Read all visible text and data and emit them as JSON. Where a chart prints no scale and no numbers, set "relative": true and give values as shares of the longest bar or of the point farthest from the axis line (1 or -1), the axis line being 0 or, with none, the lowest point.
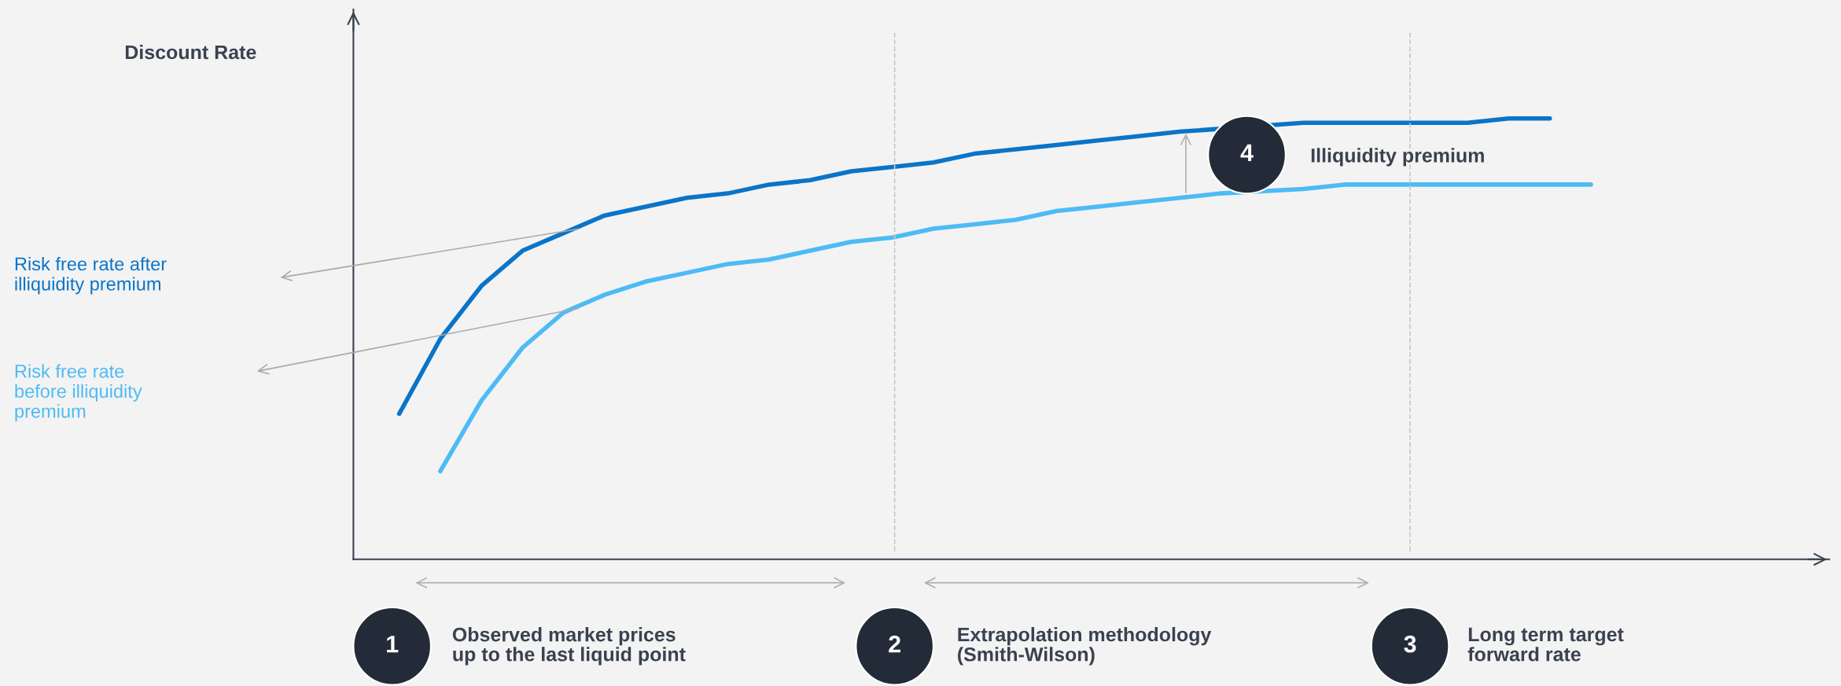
{
  "chart_data": {
    "type": "line",
    "relative": true,
    "categories": [
      null,
      null,
      null,
      null,
      null,
      null,
      null,
      null,
      null,
      null,
      null,
      null,
      null,
      null,
      null,
      null,
      null,
      null,
      null,
      null,
      null,
      null,
      null,
      null,
      null,
      null,
      null,
      null,
      null,
      null,
      null,
      null,
      null,
      null,
      null,
      null
    ],
    "series": [
      {
        "name": "Risk free rate after\nilliquidity premium",
        "color": "#0a74c8",
        "values": [
          null,
          0.33,
          0.5,
          0.62,
          0.7,
          0.74,
          0.78,
          0.8,
          0.82,
          0.83,
          0.85,
          0.86,
          0.88,
          0.89,
          0.9,
          0.92,
          0.93,
          0.94,
          0.95,
          0.96,
          0.97,
          null,
          null,
          0.99,
          0.99,
          0.99,
          0.99,
          0.99,
          1.0,
          1.0,
          null,
          null,
          null,
          null,
          null,
          null
        ]
      },
      {
        "name": "Risk free rate\nbefore illiquidity\npremium",
        "color": "#4dbbf5",
        "values": [
          null,
          null,
          0.2,
          0.36,
          0.48,
          0.56,
          0.6,
          0.63,
          0.65,
          0.67,
          0.68,
          0.7,
          0.72,
          0.73,
          0.75,
          0.76,
          0.77,
          0.79,
          0.8,
          0.81,
          0.82,
          0.83,
          null,
          0.84,
          0.85,
          0.85,
          0.85,
          0.85,
          0.85,
          0.85,
          0.85,
          null,
          null,
          null,
          null,
          null
        ]
      }
    ],
    "annotations": [
      "Discount Rate",
      "1",
      "Observed market prices\nup to the last liquid point",
      "2",
      "Extrapolation methodology\n(Smith-Wilson)",
      "3",
      "Long term target\nforward rate",
      "4",
      "Illiquidity premium"
    ],
    "grid": false,
    "legend": false,
    "marker": "none",
    "line_style": "solid"
  }
}
